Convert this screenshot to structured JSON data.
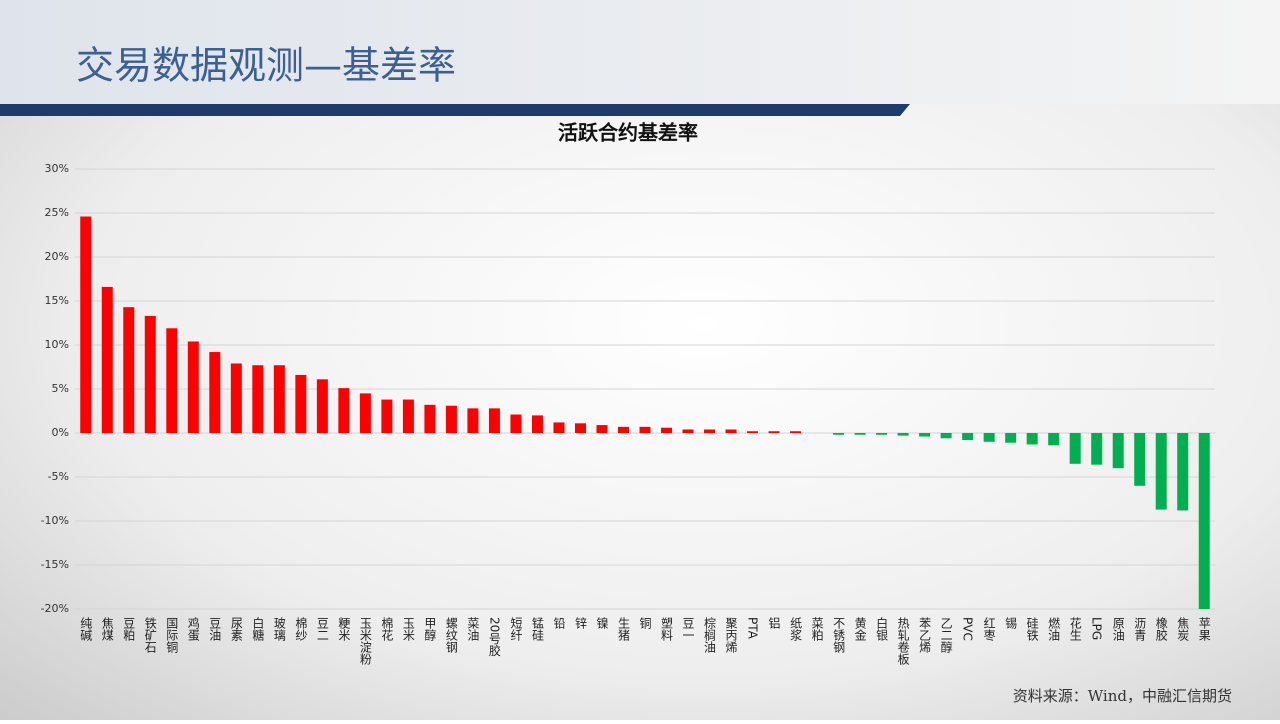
{
  "slide": {
    "title": "交易数据观测—基差率",
    "source": "资料来源：Wind，中融汇信期货"
  },
  "chart_data": {
    "type": "bar",
    "title": "活跃合约基差率",
    "categories": [
      "纯碱",
      "焦煤",
      "豆粕",
      "铁矿石",
      "国际铜",
      "鸡蛋",
      "豆油",
      "尿素",
      "白糖",
      "玻璃",
      "棉纱",
      "豆二",
      "粳米",
      "玉米淀粉",
      "棉花",
      "玉米",
      "甲醇",
      "螺纹钢",
      "菜油",
      "20号胶",
      "短纤",
      "锰硅",
      "铅",
      "锌",
      "镍",
      "生猪",
      "铜",
      "塑料",
      "豆一",
      "棕榈油",
      "聚丙烯",
      "PTA",
      "铝",
      "纸浆",
      "菜粕",
      "不锈钢",
      "黄金",
      "白银",
      "热轧卷板",
      "苯乙烯",
      "乙二醇",
      "PVC",
      "红枣",
      "锡",
      "硅铁",
      "燃油",
      "花生",
      "LPG",
      "原油",
      "沥青",
      "橡胶",
      "焦炭",
      "苹果"
    ],
    "values": [
      24.6,
      16.6,
      14.3,
      13.3,
      11.9,
      10.4,
      9.2,
      7.9,
      7.7,
      7.7,
      6.6,
      6.1,
      5.1,
      4.5,
      3.8,
      3.8,
      3.2,
      3.1,
      2.8,
      2.8,
      2.1,
      2.0,
      1.2,
      1.1,
      0.9,
      0.7,
      0.7,
      0.6,
      0.4,
      0.4,
      0.4,
      0.2,
      0.2,
      0.2,
      0.0,
      -0.2,
      -0.2,
      -0.2,
      -0.3,
      -0.4,
      -0.6,
      -0.8,
      -1.0,
      -1.1,
      -1.3,
      -1.4,
      -3.5,
      -3.6,
      -4.0,
      -6.0,
      -8.7,
      -8.8,
      -20.0
    ],
    "positive_color": "#ff0000",
    "negative_color": "#00b050",
    "ylim": [
      -20,
      30
    ],
    "yticks": [
      {
        "value": -20,
        "label": "-20%"
      },
      {
        "value": -15,
        "label": "-15%"
      },
      {
        "value": -10,
        "label": "-10%"
      },
      {
        "value": -5,
        "label": "-5%"
      },
      {
        "value": 0,
        "label": "0%"
      },
      {
        "value": 5,
        "label": "5%"
      },
      {
        "value": 10,
        "label": "10%"
      },
      {
        "value": 15,
        "label": "15%"
      },
      {
        "value": 20,
        "label": "20%"
      },
      {
        "value": 25,
        "label": "25%"
      },
      {
        "value": 30,
        "label": "30%"
      }
    ],
    "grid": true
  }
}
